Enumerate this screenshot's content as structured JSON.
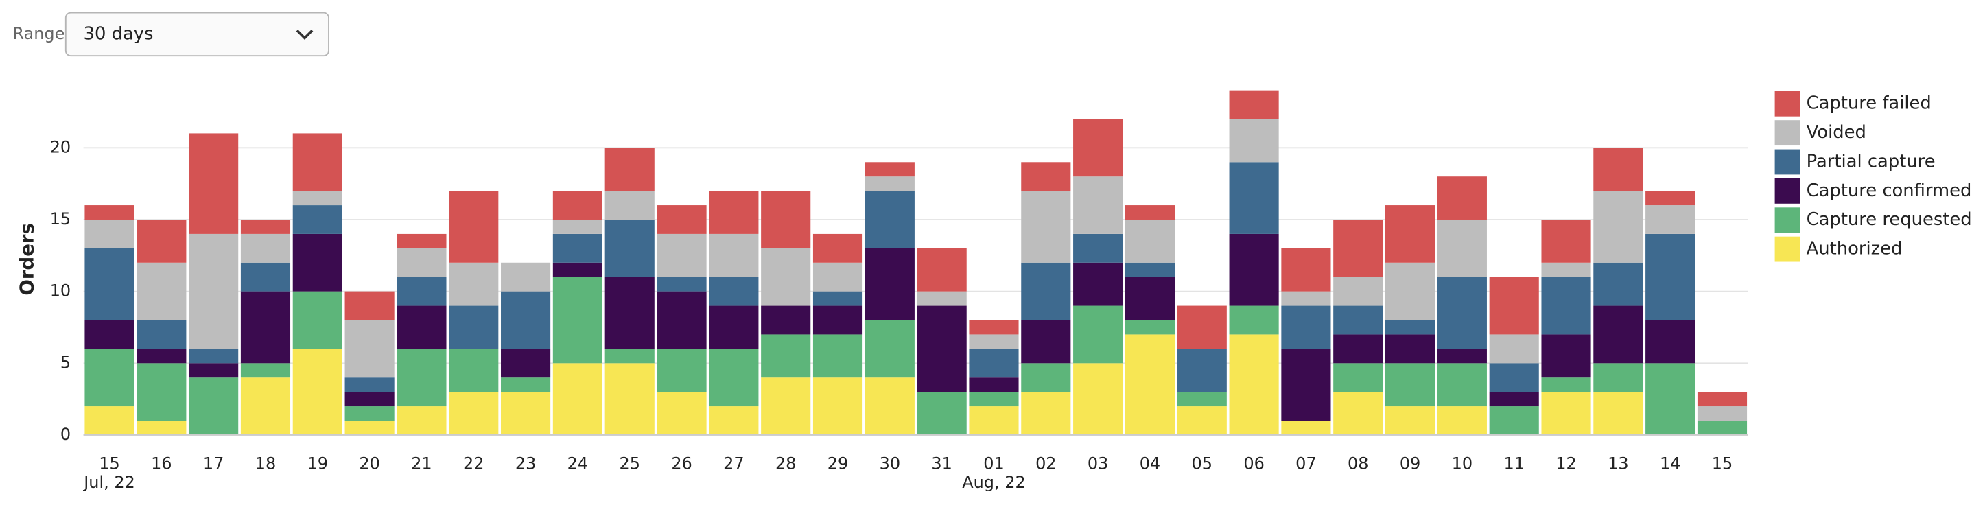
{
  "controls": {
    "range_label": "Range",
    "range_value": "30 days"
  },
  "chart_data": {
    "type": "stacked_bar",
    "y_label": "Orders",
    "categories": [
      "15",
      "16",
      "17",
      "18",
      "19",
      "20",
      "21",
      "22",
      "23",
      "24",
      "25",
      "26",
      "27",
      "28",
      "29",
      "30",
      "31",
      "01",
      "02",
      "03",
      "04",
      "05",
      "06",
      "07",
      "08",
      "09",
      "10",
      "11",
      "12",
      "13",
      "14",
      "15"
    ],
    "x_sublabels": [
      "Jul, 22",
      null,
      null,
      null,
      null,
      null,
      null,
      null,
      null,
      null,
      null,
      null,
      null,
      null,
      null,
      null,
      null,
      "Aug, 22",
      null,
      null,
      null,
      null,
      null,
      null,
      null,
      null,
      null,
      null,
      null,
      null,
      null,
      null
    ],
    "series": [
      {
        "name": "Authorized",
        "color": "#f7e654",
        "values": [
          2,
          1,
          0,
          4,
          6,
          1,
          2,
          3,
          3,
          5,
          5,
          3,
          2,
          4,
          4,
          4,
          0,
          2,
          3,
          5,
          7,
          2,
          7,
          1,
          3,
          2,
          2,
          0,
          3,
          3,
          0,
          0
        ]
      },
      {
        "name": "Capture requested",
        "color": "#5db57a",
        "values": [
          4,
          4,
          4,
          1,
          4,
          1,
          4,
          3,
          1,
          6,
          1,
          3,
          4,
          3,
          3,
          4,
          3,
          1,
          2,
          4,
          1,
          1,
          2,
          0,
          2,
          3,
          3,
          2,
          1,
          2,
          5,
          1
        ]
      },
      {
        "name": "Capture confirmed",
        "color": "#3b0b4f",
        "values": [
          2,
          1,
          1,
          5,
          4,
          1,
          3,
          0,
          2,
          1,
          5,
          4,
          3,
          2,
          2,
          5,
          6,
          1,
          3,
          3,
          3,
          0,
          5,
          5,
          2,
          2,
          1,
          1,
          3,
          4,
          3,
          0
        ]
      },
      {
        "name": "Partial capture",
        "color": "#3e6a8f",
        "values": [
          5,
          2,
          1,
          2,
          2,
          1,
          2,
          3,
          4,
          2,
          4,
          1,
          2,
          0,
          1,
          4,
          0,
          2,
          4,
          2,
          1,
          3,
          5,
          3,
          2,
          1,
          5,
          2,
          4,
          3,
          6,
          0
        ]
      },
      {
        "name": "Voided",
        "color": "#bdbdbd",
        "values": [
          2,
          4,
          8,
          2,
          1,
          4,
          2,
          3,
          2,
          1,
          2,
          3,
          3,
          4,
          2,
          1,
          1,
          1,
          5,
          4,
          3,
          0,
          3,
          1,
          2,
          4,
          4,
          2,
          1,
          5,
          2,
          1
        ]
      },
      {
        "name": "Capture failed",
        "color": "#d45353",
        "values": [
          1,
          3,
          7,
          1,
          4,
          2,
          1,
          5,
          0,
          2,
          3,
          2,
          3,
          4,
          2,
          1,
          3,
          1,
          2,
          4,
          1,
          3,
          2,
          3,
          4,
          4,
          3,
          4,
          3,
          3,
          1,
          1
        ]
      }
    ],
    "ylim": [
      0,
      25
    ],
    "yticks": [
      0,
      5,
      10,
      15,
      20
    ],
    "grid": true,
    "legend": "right"
  }
}
